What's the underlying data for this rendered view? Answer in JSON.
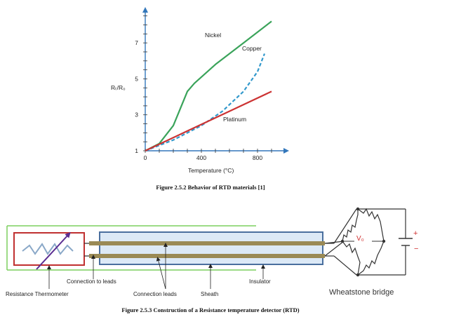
{
  "chart_data": {
    "type": "line",
    "title": "",
    "xlabel": "Temperature (°C)",
    "ylabel": "Rₜ/R₀",
    "xlim": [
      0,
      1000
    ],
    "ylim": [
      1,
      8.8
    ],
    "xticks": [
      0,
      400,
      800
    ],
    "yticks": [
      1,
      3,
      5,
      7
    ],
    "grid": false,
    "series": [
      {
        "name": "Nickel",
        "color": "#3aa35a",
        "style": "solid",
        "x": [
          0,
          100,
          200,
          300,
          350,
          500,
          700,
          900
        ],
        "y": [
          1.0,
          1.4,
          2.4,
          4.3,
          4.75,
          5.8,
          7.0,
          8.2
        ]
      },
      {
        "name": "Copper",
        "color": "#3399cc",
        "style": "dashed",
        "x": [
          0,
          200,
          400,
          550,
          700,
          800,
          850
        ],
        "y": [
          1.0,
          1.6,
          2.4,
          3.2,
          4.3,
          5.4,
          6.4
        ]
      },
      {
        "name": "Platinum",
        "color": "#cc3333",
        "style": "solid",
        "x": [
          0,
          300,
          600,
          900
        ],
        "y": [
          1.0,
          2.1,
          3.2,
          4.3
        ]
      }
    ]
  },
  "figure1": {
    "caption": "Figure 2.5.2 Behavior of RTD materials [1]"
  },
  "figure2": {
    "caption": "Figure 2.5.3 Construction of a Resistance temperature detector (RTD)",
    "labels": {
      "connection_to_leads": "Connection to leads",
      "insulator": "Insulator",
      "resistance_thermometer": "Resistance Thermometer",
      "connection_leads": "Connection leads",
      "sheath": "Sheath",
      "wheatstone_bridge": "Wheatstone bridge",
      "v0": "V₀",
      "plus": "+",
      "minus": "−"
    },
    "colors": {
      "sheath": "#4a6f9e",
      "lead": "#9a8a55",
      "thermometer": "#c03030",
      "bulb": "#7ccf5e",
      "probe": "#5a2d91"
    }
  }
}
